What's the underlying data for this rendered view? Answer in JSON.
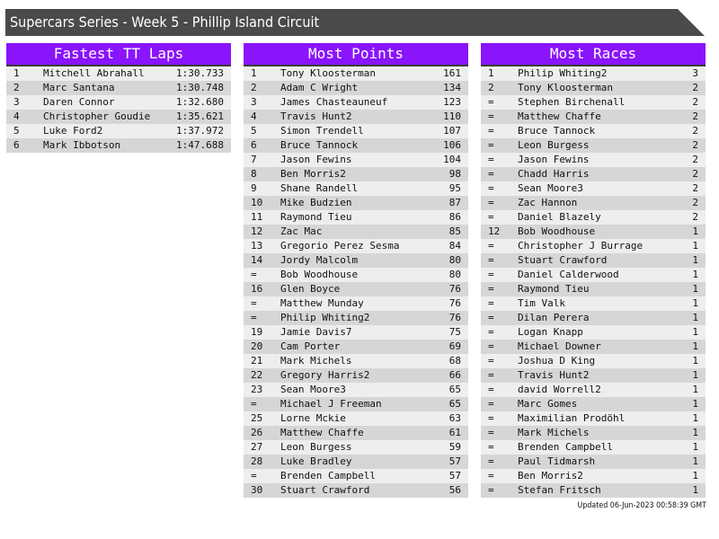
{
  "title": "Supercars Series - Week 5 - Phillip Island Circuit",
  "colors": {
    "header_bg": "#8a14fc",
    "title_bg": "#4a4a4a",
    "row_light": "#eeeeee",
    "row_dark": "#d6d6d6"
  },
  "panels": [
    {
      "title": "Fastest TT Laps",
      "rows": [
        [
          "1",
          "Mitchell Abrahall",
          "1:30.733"
        ],
        [
          "2",
          "Marc Santana",
          "1:30.748"
        ],
        [
          "3",
          "Daren Connor",
          "1:32.680"
        ],
        [
          "4",
          "Christopher Goudie",
          "1:35.621"
        ],
        [
          "5",
          "Luke Ford2",
          "1:37.972"
        ],
        [
          "6",
          "Mark Ibbotson",
          "1:47.688"
        ]
      ]
    },
    {
      "title": "Most Points",
      "rows": [
        [
          "1",
          "Tony Kloosterman",
          "161"
        ],
        [
          "2",
          "Adam C Wright",
          "134"
        ],
        [
          "3",
          "James Chasteauneuf",
          "123"
        ],
        [
          "4",
          "Travis Hunt2",
          "110"
        ],
        [
          "5",
          "Simon Trendell",
          "107"
        ],
        [
          "6",
          "Bruce Tannock",
          "106"
        ],
        [
          "7",
          "Jason Fewins",
          "104"
        ],
        [
          "8",
          "Ben Morris2",
          "98"
        ],
        [
          "9",
          "Shane Randell",
          "95"
        ],
        [
          "10",
          "Mike Budzien",
          "87"
        ],
        [
          "11",
          "Raymond Tieu",
          "86"
        ],
        [
          "12",
          "Zac Mac",
          "85"
        ],
        [
          "13",
          "Gregorio Perez Sesma",
          "84"
        ],
        [
          "14",
          "Jordy Malcolm",
          "80"
        ],
        [
          "=",
          "Bob Woodhouse",
          "80"
        ],
        [
          "16",
          "Glen Boyce",
          "76"
        ],
        [
          "=",
          "Matthew Munday",
          "76"
        ],
        [
          "=",
          "Philip Whiting2",
          "76"
        ],
        [
          "19",
          "Jamie Davis7",
          "75"
        ],
        [
          "20",
          "Cam Porter",
          "69"
        ],
        [
          "21",
          "Mark Michels",
          "68"
        ],
        [
          "22",
          "Gregory Harris2",
          "66"
        ],
        [
          "23",
          "Sean Moore3",
          "65"
        ],
        [
          "=",
          "Michael J Freeman",
          "65"
        ],
        [
          "25",
          "Lorne Mckie",
          "63"
        ],
        [
          "26",
          "Matthew Chaffe",
          "61"
        ],
        [
          "27",
          "Leon Burgess",
          "59"
        ],
        [
          "28",
          "Luke Bradley",
          "57"
        ],
        [
          "=",
          "Brenden Campbell",
          "57"
        ],
        [
          "30",
          "Stuart Crawford",
          "56"
        ]
      ]
    },
    {
      "title": "Most Races",
      "rows": [
        [
          "1",
          "Philip Whiting2",
          "3"
        ],
        [
          "2",
          "Tony Kloosterman",
          "2"
        ],
        [
          "=",
          "Stephen Birchenall",
          "2"
        ],
        [
          "=",
          "Matthew Chaffe",
          "2"
        ],
        [
          "=",
          "Bruce Tannock",
          "2"
        ],
        [
          "=",
          "Leon Burgess",
          "2"
        ],
        [
          "=",
          "Jason Fewins",
          "2"
        ],
        [
          "=",
          "Chadd Harris",
          "2"
        ],
        [
          "=",
          "Sean Moore3",
          "2"
        ],
        [
          "=",
          "Zac Hannon",
          "2"
        ],
        [
          "=",
          "Daniel Blazely",
          "2"
        ],
        [
          "12",
          "Bob Woodhouse",
          "1"
        ],
        [
          "=",
          "Christopher J Burrage",
          "1"
        ],
        [
          "=",
          "Stuart Crawford",
          "1"
        ],
        [
          "=",
          "Daniel Calderwood",
          "1"
        ],
        [
          "=",
          "Raymond Tieu",
          "1"
        ],
        [
          "=",
          "Tim Valk",
          "1"
        ],
        [
          "=",
          "Dilan Perera",
          "1"
        ],
        [
          "=",
          "Logan Knapp",
          "1"
        ],
        [
          "=",
          "Michael Downer",
          "1"
        ],
        [
          "=",
          "Joshua D King",
          "1"
        ],
        [
          "=",
          "Travis Hunt2",
          "1"
        ],
        [
          "=",
          "david Worrell2",
          "1"
        ],
        [
          "=",
          "Marc Gomes",
          "1"
        ],
        [
          "=",
          "Maximilian Prodöhl",
          "1"
        ],
        [
          "=",
          "Mark Michels",
          "1"
        ],
        [
          "=",
          "Brenden Campbell",
          "1"
        ],
        [
          "=",
          "Paul Tidmarsh",
          "1"
        ],
        [
          "=",
          "Ben Morris2",
          "1"
        ],
        [
          "=",
          "Stefan Fritsch",
          "1"
        ]
      ]
    }
  ],
  "updated": "Updated 06-Jun-2023 00:58:39 GMT"
}
